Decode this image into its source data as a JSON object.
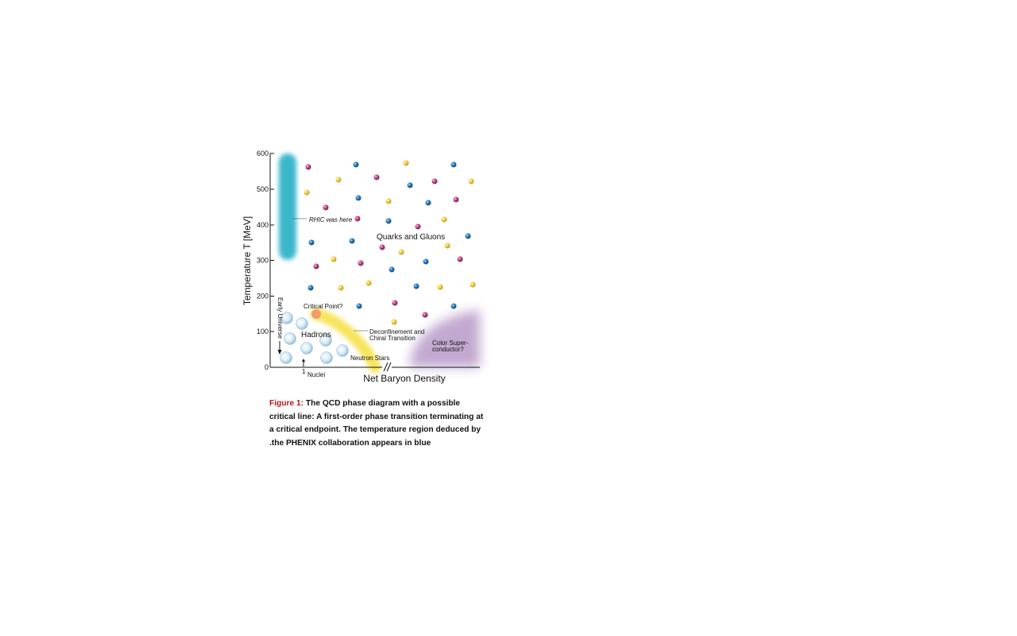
{
  "y_axis": {
    "title": "Temperature T [MeV]",
    "ticks": [
      "0",
      "100",
      "200",
      "300",
      "400",
      "500",
      "600"
    ]
  },
  "x_axis": {
    "title": "Net Baryon Density",
    "tick_label": "1"
  },
  "labels": {
    "rhic": "RHIC was here",
    "quarks_gluons": "Quarks and Gluons",
    "critical_point": "Critical Point?",
    "hadrons": "Hadrons",
    "transition_line1": "Deconfinement and",
    "transition_line2": "Chiral Transition",
    "neutron_stars": "Neutron Stars",
    "color_sc_line1": "Color Super-",
    "color_sc_line2": "conductor?",
    "early_universe": "Early Universe",
    "nuclei": "Nuclei"
  },
  "caption": {
    "label": "Figure 1:",
    "text": "The QCD phase diagram with a possible critical line: A first-order phase transition terminating at a critical endpoint. The temperature region deduced by .the PHENIX collaboration appears in blue"
  },
  "colors": {
    "rhic_band": "#3bb7cc",
    "quark_blue": "#2a7fc0",
    "quark_pink": "#c0488c",
    "quark_yellow": "#f2d24a",
    "critical_point": "#f59a6a",
    "transition_band": "#f6e24e",
    "color_superconductor": "#b79ac8",
    "hadron_bubble": "#b9d8ea"
  }
}
